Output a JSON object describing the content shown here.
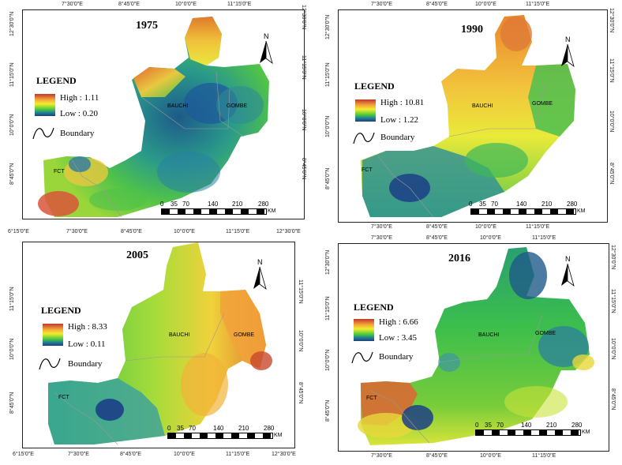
{
  "panels": [
    {
      "title": "1975",
      "legend": {
        "heading": "LEGEND",
        "high": "High : 1.11",
        "low": "Low : 0.20",
        "boundary": "Boundary"
      },
      "regions": [
        "FCT",
        "BAUCHI",
        "GOMBE"
      ],
      "top_ticks": [
        "7°30'0\"E",
        "8°45'0\"E",
        "10°0'0\"E",
        "11°15'0\"E"
      ],
      "bottom_ticks": [],
      "left_ticks": [
        "12°30'0\"N",
        "11°15'0\"N",
        "10°0'0\"N",
        "8°45'0\"N"
      ],
      "right_ticks": [
        "12°30'0\"N",
        "11°15'0\"N",
        "10°0'0\"N",
        "8°45'0\"N"
      ],
      "scale": [
        "0",
        "35",
        "70",
        "140",
        "210",
        "280"
      ],
      "scale_unit": "KM",
      "north": "N"
    },
    {
      "title": "1990",
      "legend": {
        "heading": "LEGEND",
        "high": "High : 10.81",
        "low": "Low : 1.22",
        "boundary": "Boundary"
      },
      "regions": [
        "FCT",
        "BAUCHI",
        "GOMBE"
      ],
      "top_ticks": [
        "7°30'0\"E",
        "8°45'0\"E",
        "10°0'0\"E",
        "11°15'0\"E"
      ],
      "bottom_ticks": [
        "7°30'0\"E",
        "8°45'0\"E",
        "10°0'0\"E",
        "11°15'0\"E"
      ],
      "left_ticks": [
        "12°30'0\"N",
        "11°15'0\"N",
        "10°0'0\"N",
        "8°45'0\"N"
      ],
      "right_ticks": [
        "12°30'0\"N",
        "11°15'0\"N",
        "10°0'0\"N",
        "8°45'0\"N"
      ],
      "scale": [
        "0",
        "35",
        "70",
        "140",
        "210",
        "280"
      ],
      "scale_unit": "KM",
      "north": "N"
    },
    {
      "title": "2005",
      "legend": {
        "heading": "LEGEND",
        "high": "High : 8.33",
        "low": "Low : 0.11",
        "boundary": "Boundary"
      },
      "regions": [
        "FCT",
        "BAUCHI",
        "GOMBE"
      ],
      "top_ticks": [
        "6°15'0\"E",
        "7°30'0\"E",
        "8°45'0\"E",
        "10°0'0\"E",
        "11°15'0\"E",
        "12°30'0\"E"
      ],
      "bottom_ticks": [
        "6°15'0\"E",
        "7°30'0\"E",
        "8°45'0\"E",
        "10°0'0\"E",
        "11°15'0\"E",
        "12°30'0\"E"
      ],
      "left_ticks": [
        "11°15'0\"N",
        "10°0'0\"N",
        "8°45'0\"N"
      ],
      "right_ticks": [
        "11°15'0\"N",
        "10°0'0\"N",
        "8°45'0\"N"
      ],
      "scale": [
        "0",
        "35",
        "70",
        "140",
        "210",
        "280"
      ],
      "scale_unit": "KM",
      "north": "N"
    },
    {
      "title": "2016",
      "legend": {
        "heading": "LEGEND",
        "high": "High : 6.66",
        "low": "Low : 3.45",
        "boundary": "Boundary"
      },
      "regions": [
        "FCT",
        "BAUCHI",
        "GOMBE"
      ],
      "top_ticks": [
        "7°30'0\"E",
        "8°45'0\"E",
        "10°0'0\"E",
        "11°15'0\"E"
      ],
      "bottom_ticks": [
        "7°30'0\"E",
        "8°45'0\"E",
        "10°0'0\"E",
        "11°15'0\"E"
      ],
      "left_ticks": [
        "12°30'0\"N",
        "11°15'0\"N",
        "10°0'0\"N",
        "8°45'0\"N"
      ],
      "right_ticks": [
        "12°30'0\"N",
        "11°15'0\"N",
        "10°0'0\"N",
        "8°45'0\"N"
      ],
      "scale": [
        "0",
        "35",
        "70",
        "140",
        "210",
        "280"
      ],
      "scale_unit": "KM",
      "north": "N"
    }
  ]
}
